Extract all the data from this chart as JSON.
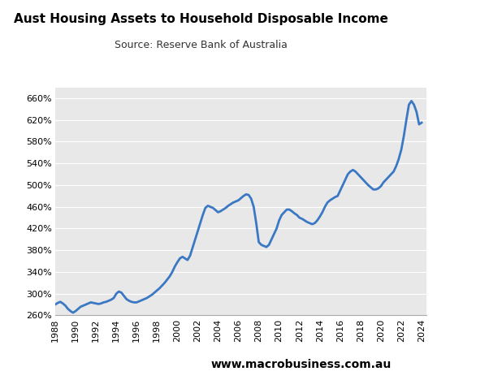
{
  "title": "Aust Housing Assets to Household Disposable Income",
  "subtitle": "Source: Reserve Bank of Australia",
  "website": "www.macrobusiness.com.au",
  "line_color": "#3b78c3",
  "line_width": 2.0,
  "bg_color": "#e8e8e8",
  "fig_bg_color": "#ffffff",
  "ylim": [
    260,
    680
  ],
  "yticks": [
    260,
    300,
    340,
    380,
    420,
    460,
    500,
    540,
    580,
    620,
    660
  ],
  "xlim": [
    1988,
    2024.5
  ],
  "xticks": [
    1988,
    1990,
    1992,
    1994,
    1996,
    1998,
    2000,
    2002,
    2004,
    2006,
    2008,
    2010,
    2012,
    2014,
    2016,
    2018,
    2020,
    2022,
    2024
  ],
  "years": [
    1988.0,
    1988.25,
    1988.5,
    1988.75,
    1989.0,
    1989.25,
    1989.5,
    1989.75,
    1990.0,
    1990.25,
    1990.5,
    1990.75,
    1991.0,
    1991.25,
    1991.5,
    1991.75,
    1992.0,
    1992.25,
    1992.5,
    1992.75,
    1993.0,
    1993.25,
    1993.5,
    1993.75,
    1994.0,
    1994.25,
    1994.5,
    1994.75,
    1995.0,
    1995.25,
    1995.5,
    1995.75,
    1996.0,
    1996.25,
    1996.5,
    1996.75,
    1997.0,
    1997.25,
    1997.5,
    1997.75,
    1998.0,
    1998.25,
    1998.5,
    1998.75,
    1999.0,
    1999.25,
    1999.5,
    1999.75,
    2000.0,
    2000.25,
    2000.5,
    2000.75,
    2001.0,
    2001.25,
    2001.5,
    2001.75,
    2002.0,
    2002.25,
    2002.5,
    2002.75,
    2003.0,
    2003.25,
    2003.5,
    2003.75,
    2004.0,
    2004.25,
    2004.5,
    2004.75,
    2005.0,
    2005.25,
    2005.5,
    2005.75,
    2006.0,
    2006.25,
    2006.5,
    2006.75,
    2007.0,
    2007.25,
    2007.5,
    2007.75,
    2008.0,
    2008.25,
    2008.5,
    2008.75,
    2009.0,
    2009.25,
    2009.5,
    2009.75,
    2010.0,
    2010.25,
    2010.5,
    2010.75,
    2011.0,
    2011.25,
    2011.5,
    2011.75,
    2012.0,
    2012.25,
    2012.5,
    2012.75,
    2013.0,
    2013.25,
    2013.5,
    2013.75,
    2014.0,
    2014.25,
    2014.5,
    2014.75,
    2015.0,
    2015.25,
    2015.5,
    2015.75,
    2016.0,
    2016.25,
    2016.5,
    2016.75,
    2017.0,
    2017.25,
    2017.5,
    2017.75,
    2018.0,
    2018.25,
    2018.5,
    2018.75,
    2019.0,
    2019.25,
    2019.5,
    2019.75,
    2020.0,
    2020.25,
    2020.5,
    2020.75,
    2021.0,
    2021.25,
    2021.5,
    2021.75,
    2022.0,
    2022.25,
    2022.5,
    2022.75,
    2023.0,
    2023.25,
    2023.5,
    2023.75,
    2024.0
  ],
  "values": [
    280,
    283,
    285,
    282,
    278,
    272,
    268,
    265,
    268,
    272,
    276,
    278,
    280,
    282,
    284,
    283,
    282,
    281,
    282,
    284,
    285,
    287,
    289,
    292,
    300,
    304,
    302,
    296,
    290,
    287,
    285,
    284,
    284,
    286,
    288,
    290,
    292,
    295,
    298,
    302,
    306,
    310,
    315,
    320,
    326,
    332,
    340,
    350,
    358,
    365,
    368,
    365,
    362,
    370,
    385,
    400,
    415,
    430,
    445,
    458,
    462,
    460,
    458,
    454,
    450,
    452,
    455,
    458,
    462,
    465,
    468,
    470,
    472,
    476,
    480,
    483,
    482,
    475,
    460,
    430,
    395,
    390,
    388,
    386,
    390,
    400,
    410,
    420,
    435,
    445,
    450,
    455,
    455,
    452,
    448,
    445,
    440,
    438,
    435,
    432,
    430,
    428,
    430,
    435,
    442,
    450,
    460,
    468,
    472,
    475,
    478,
    480,
    490,
    500,
    510,
    520,
    525,
    528,
    525,
    520,
    515,
    510,
    505,
    500,
    496,
    492,
    492,
    494,
    498,
    505,
    510,
    515,
    520,
    525,
    535,
    548,
    565,
    590,
    620,
    648,
    655,
    648,
    635,
    612,
    615
  ]
}
